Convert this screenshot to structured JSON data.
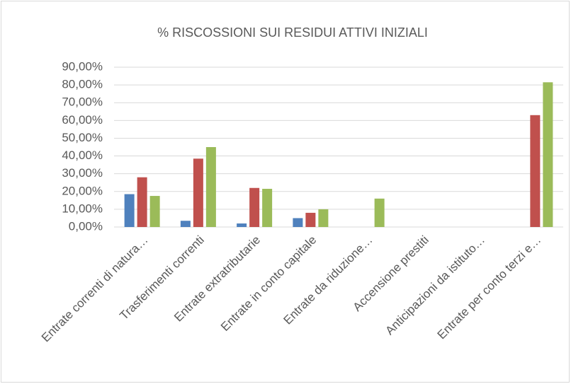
{
  "chart_data": {
    "type": "bar",
    "title": "% RISCOSSIONI SUI RESIDUI ATTIVI INIZIALI",
    "categories": [
      "Entrate correnti di natura…",
      "Trasferimenti correnti",
      "Entrate extratributarie",
      "Entrate in conto capitale",
      "Entrate da riduzione…",
      "Accensione prestiti",
      "Anticipazioni da istituto…",
      "Entrate per conto terzi e…"
    ],
    "series": [
      {
        "color": "#4f81bd",
        "values": [
          18.5,
          3.5,
          2,
          5,
          null,
          null,
          null,
          null
        ]
      },
      {
        "color": "#c0504d",
        "values": [
          28,
          38.5,
          22,
          8,
          null,
          null,
          null,
          63
        ]
      },
      {
        "color": "#9bbb59",
        "values": [
          17.5,
          45,
          21.5,
          10,
          16,
          null,
          null,
          81.5
        ]
      }
    ],
    "ylim": [
      0,
      90
    ],
    "yticks": [
      {
        "value": 0,
        "label": "0,00%"
      },
      {
        "value": 10,
        "label": "10,00%"
      },
      {
        "value": 20,
        "label": "20,00%"
      },
      {
        "value": 30,
        "label": "30,00%"
      },
      {
        "value": 40,
        "label": "40,00%"
      },
      {
        "value": 50,
        "label": "50,00%"
      },
      {
        "value": 60,
        "label": "60,00%"
      },
      {
        "value": 70,
        "label": "70,00%"
      },
      {
        "value": 80,
        "label": "80,00%"
      },
      {
        "value": 90,
        "label": "90,00%"
      }
    ],
    "grid": true
  }
}
